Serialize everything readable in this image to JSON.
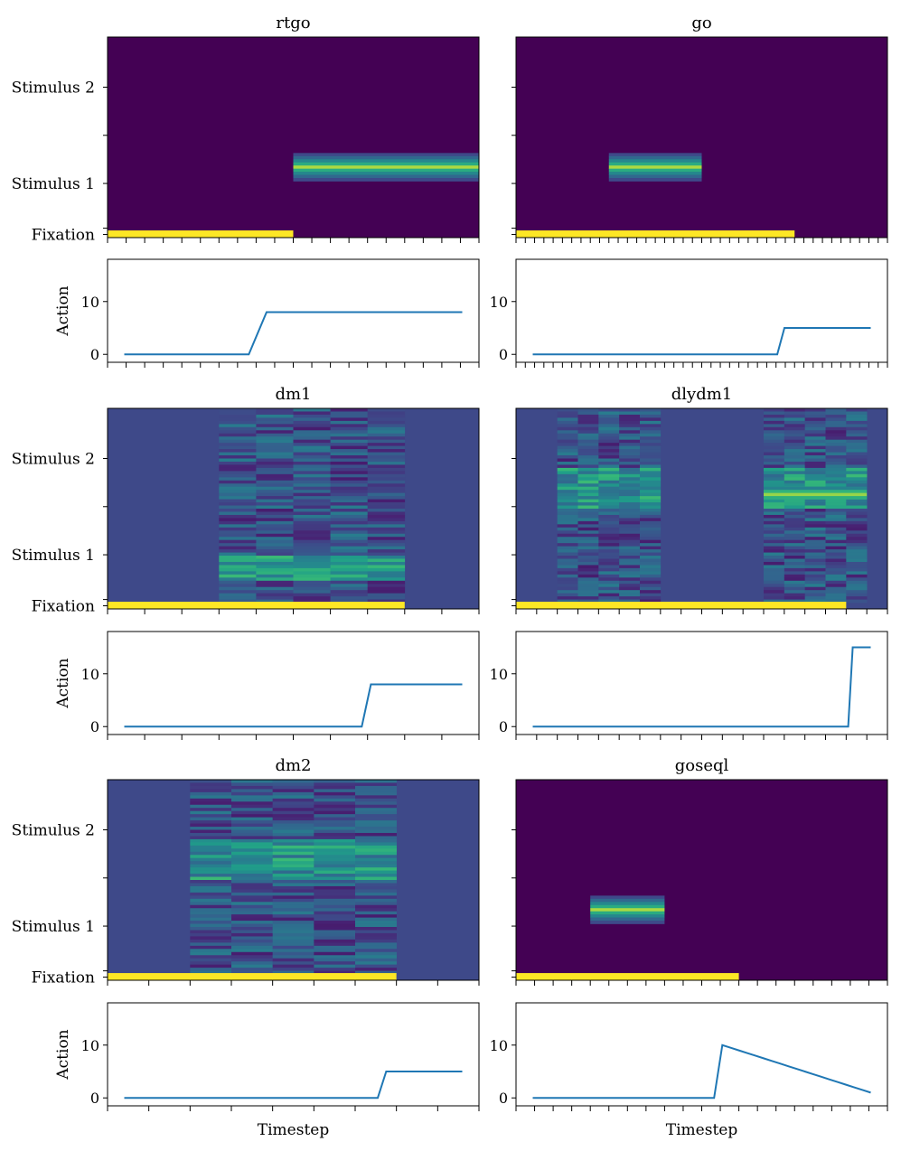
{
  "figure": {
    "row_tick_labels": [
      "Fixation",
      "Stimulus 1",
      "Stimulus 2"
    ],
    "action_label": "Action",
    "action_ticks": [
      0,
      10
    ],
    "xlabel": "Timestep"
  },
  "chart_data": [
    {
      "type": "heatmap",
      "title": "rtgo",
      "n_steps": 20,
      "style": "clean",
      "fixation_until_step": 10,
      "stimulus1_band": {
        "from_step": 10,
        "to_step": 20
      },
      "action": {
        "type": "line",
        "ylim": [
          -1.5,
          18
        ],
        "values": [
          0,
          0,
          0,
          0,
          0,
          0,
          0,
          0,
          8,
          8,
          8,
          8,
          8,
          8,
          8,
          8,
          8,
          8,
          8,
          8
        ]
      },
      "palette": {
        "background": "#440154",
        "fixation": "#fde725",
        "line": "#1f77b4"
      }
    },
    {
      "type": "heatmap",
      "title": "go",
      "n_steps": 40,
      "style": "clean",
      "fixation_until_step": 30,
      "stimulus1_band": {
        "from_step": 10,
        "to_step": 20
      },
      "action": {
        "type": "line",
        "ylim": [
          -1.5,
          18
        ],
        "values": [
          0,
          0,
          0,
          0,
          0,
          0,
          0,
          0,
          0,
          0,
          0,
          0,
          0,
          0,
          0,
          0,
          0,
          0,
          0,
          0,
          0,
          0,
          0,
          0,
          0,
          0,
          0,
          0,
          0,
          0,
          0,
          0,
          0,
          0,
          0,
          5,
          5,
          5,
          5,
          5,
          5,
          5,
          5,
          5,
          5,
          5,
          5,
          5
        ]
      },
      "palette": {
        "background": "#440154",
        "fixation": "#fde725",
        "line": "#1f77b4"
      }
    },
    {
      "type": "heatmap",
      "title": "dm1",
      "n_steps": 10,
      "style": "noisy",
      "fixation_until_step": 8,
      "noise_steps": [
        3,
        8
      ],
      "stim1_emphasis": [
        6
      ],
      "action": {
        "type": "line",
        "ylim": [
          -1.5,
          18
        ],
        "values": [
          0,
          0,
          0,
          0,
          0,
          0,
          0,
          0,
          0,
          0,
          0,
          0,
          0,
          0,
          0,
          0,
          0,
          0,
          0,
          0,
          0,
          0,
          0,
          0,
          0,
          0,
          0,
          8,
          8,
          8,
          8,
          8,
          8,
          8,
          8,
          8,
          8,
          8
        ]
      },
      "palette": {
        "background": "#3e4989",
        "fixation": "#fde725",
        "line": "#1f77b4"
      }
    },
    {
      "type": "heatmap",
      "title": "dlydm1",
      "n_steps": 18,
      "style": "noisy",
      "fixation_until_step": 16,
      "noise_steps": [
        2,
        7,
        12,
        17
      ],
      "stim2_emphasis": [
        7
      ],
      "action": {
        "type": "line",
        "ylim": [
          -1.5,
          18
        ],
        "values": [
          0,
          0,
          0,
          0,
          0,
          0,
          0,
          0,
          0,
          0,
          0,
          0,
          0,
          0,
          0,
          0,
          0,
          0,
          0,
          0,
          0,
          0,
          0,
          0,
          0,
          0,
          0,
          0,
          0,
          0,
          0,
          0,
          0,
          0,
          0,
          0,
          0,
          0,
          0,
          0,
          0,
          0,
          0,
          0,
          0,
          0,
          0,
          0,
          0,
          0,
          0,
          0,
          0,
          0,
          0,
          0,
          0,
          0,
          0,
          0,
          0,
          0,
          0,
          0,
          0,
          0,
          0,
          0,
          0,
          0,
          0,
          15,
          15,
          15,
          15,
          15
        ]
      },
      "palette": {
        "background": "#3e4989",
        "fixation": "#fde725",
        "line": "#1f77b4"
      }
    },
    {
      "type": "heatmap",
      "title": "dm2",
      "n_steps": 9,
      "style": "noisy",
      "fixation_until_step": 7,
      "noise_steps": [
        2,
        7
      ],
      "stim2_emphasis": [
        4,
        6
      ],
      "action": {
        "type": "line",
        "ylim": [
          -1.5,
          18
        ],
        "values": [
          0,
          0,
          0,
          0,
          0,
          0,
          0,
          0,
          0,
          0,
          0,
          0,
          0,
          0,
          0,
          0,
          0,
          0,
          0,
          0,
          0,
          0,
          0,
          0,
          0,
          0,
          0,
          0,
          0,
          0,
          0,
          5,
          5,
          5,
          5,
          5,
          5,
          5,
          5,
          5,
          5
        ]
      },
      "palette": {
        "background": "#3e4989",
        "fixation": "#fde725",
        "line": "#1f77b4"
      }
    },
    {
      "type": "heatmap",
      "title": "goseql",
      "n_steps": 20,
      "style": "clean",
      "fixation_until_step": 12,
      "stimulus1_band": {
        "from_step": 4,
        "to_step": 8
      },
      "action": {
        "type": "line",
        "ylim": [
          -1.5,
          18
        ],
        "values": [
          0,
          0,
          0,
          0,
          0,
          0,
          0,
          0,
          0,
          0,
          0,
          0,
          0,
          0,
          0,
          0,
          0,
          0,
          0,
          0,
          0,
          0,
          0,
          10,
          9.5,
          9,
          8.5,
          8,
          7.5,
          7,
          6.5,
          6,
          5.5,
          5,
          4.5,
          4,
          3.5,
          3,
          2.5,
          2,
          1.5,
          1
        ]
      },
      "palette": {
        "background": "#440154",
        "fixation": "#fde725",
        "line": "#1f77b4"
      }
    }
  ]
}
